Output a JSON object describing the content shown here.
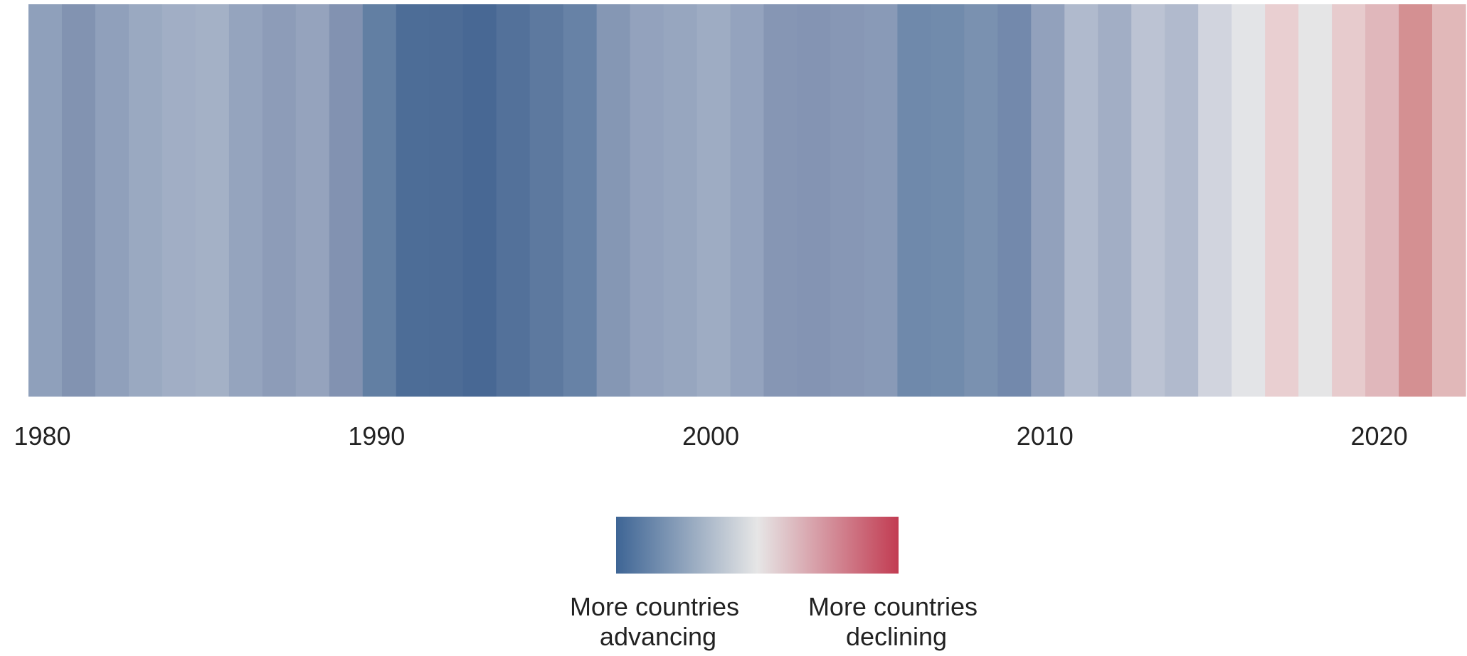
{
  "chart_data": {
    "type": "heatmap",
    "title": "",
    "xlabel": "",
    "ylabel": "",
    "x_range": [
      1980,
      2022
    ],
    "x_ticks": [
      1980,
      1990,
      2000,
      2010,
      2020
    ],
    "tick_labels": [
      "1980",
      "1990",
      "2000",
      "2010",
      "2020"
    ],
    "grid": false,
    "legend_position": "bottom-center",
    "colorscale": {
      "low_color": "#3e6595",
      "mid_color": "#e6e6e6",
      "high_color": "#c23c52",
      "low_label_lines": [
        "More countries",
        "advancing"
      ],
      "high_label_lines": [
        "More countries",
        "declining"
      ]
    },
    "stripes": [
      {
        "year": 1980,
        "color": "#8fa0bb"
      },
      {
        "year": 1981,
        "color": "#8293b1"
      },
      {
        "year": 1982,
        "color": "#90a0bb"
      },
      {
        "year": 1983,
        "color": "#9aa9c1"
      },
      {
        "year": 1984,
        "color": "#a1aec5"
      },
      {
        "year": 1985,
        "color": "#a4b1c6"
      },
      {
        "year": 1986,
        "color": "#95a4be"
      },
      {
        "year": 1987,
        "color": "#8d9cb8"
      },
      {
        "year": 1988,
        "color": "#95a3bd"
      },
      {
        "year": 1989,
        "color": "#8292b1"
      },
      {
        "year": 1990,
        "color": "#627fa3"
      },
      {
        "year": 1991,
        "color": "#4d6d97"
      },
      {
        "year": 1992,
        "color": "#4d6c96"
      },
      {
        "year": 1993,
        "color": "#486894"
      },
      {
        "year": 1994,
        "color": "#53719a"
      },
      {
        "year": 1995,
        "color": "#5d799f"
      },
      {
        "year": 1996,
        "color": "#6782a6"
      },
      {
        "year": 1997,
        "color": "#8597b4"
      },
      {
        "year": 1998,
        "color": "#93a2bd"
      },
      {
        "year": 1999,
        "color": "#97a6bf"
      },
      {
        "year": 2000,
        "color": "#9eacc3"
      },
      {
        "year": 2001,
        "color": "#94a3be"
      },
      {
        "year": 2002,
        "color": "#8696b4"
      },
      {
        "year": 2003,
        "color": "#8494b3"
      },
      {
        "year": 2004,
        "color": "#8797b5"
      },
      {
        "year": 2005,
        "color": "#899ab7"
      },
      {
        "year": 2006,
        "color": "#6f89ab"
      },
      {
        "year": 2007,
        "color": "#718bac"
      },
      {
        "year": 2008,
        "color": "#7a91b0"
      },
      {
        "year": 2009,
        "color": "#7389ac"
      },
      {
        "year": 2010,
        "color": "#92a1bc"
      },
      {
        "year": 2011,
        "color": "#b0bacd"
      },
      {
        "year": 2012,
        "color": "#a2aec5"
      },
      {
        "year": 2013,
        "color": "#bcc3d3"
      },
      {
        "year": 2014,
        "color": "#b1bacd"
      },
      {
        "year": 2015,
        "color": "#d1d4de"
      },
      {
        "year": 2016,
        "color": "#e3e4e7"
      },
      {
        "year": 2017,
        "color": "#e9cfd1"
      },
      {
        "year": 2018,
        "color": "#e5e5e6"
      },
      {
        "year": 2019,
        "color": "#e7cbcd"
      },
      {
        "year": 2020,
        "color": "#e0b7bb"
      },
      {
        "year": 2021,
        "color": "#d49092"
      },
      {
        "year": 2022,
        "color": "#e1b8b9"
      }
    ]
  }
}
